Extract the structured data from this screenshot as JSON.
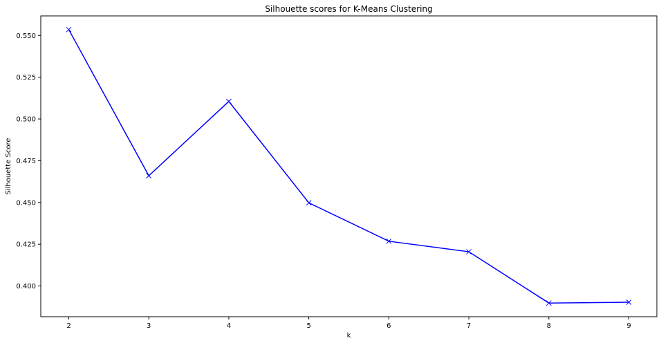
{
  "chart_data": {
    "type": "line",
    "title": "Silhouette scores for K-Means Clustering",
    "xlabel": "k",
    "ylabel": "Silhouette Score",
    "x": [
      2,
      3,
      4,
      5,
      6,
      7,
      8,
      9
    ],
    "series": [
      {
        "values": [
          0.5535,
          0.466,
          0.5105,
          0.4498,
          0.4268,
          0.4205,
          0.3898,
          0.3903
        ],
        "color": "#0000ff",
        "marker": "x"
      }
    ],
    "xticks": [
      "2",
      "3",
      "4",
      "5",
      "6",
      "7",
      "8",
      "9"
    ],
    "yticks": [
      "0.400",
      "0.425",
      "0.450",
      "0.475",
      "0.500",
      "0.525",
      "0.550"
    ],
    "xlim": [
      1.65,
      9.35
    ],
    "ylim": [
      0.3816,
      0.5617
    ],
    "grid": false,
    "legend": "none"
  }
}
